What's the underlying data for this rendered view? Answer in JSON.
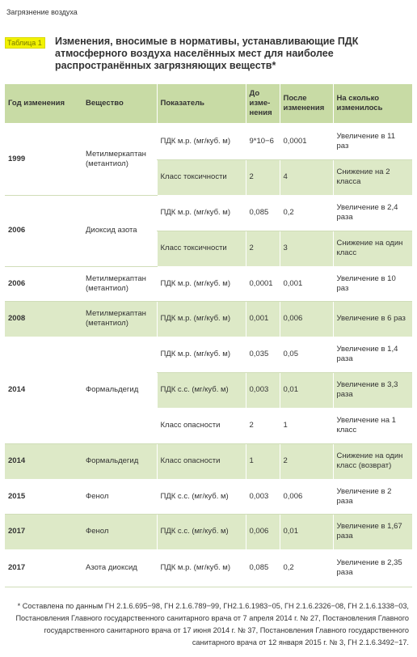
{
  "section_header": "Загрязнение воздуха",
  "caption": {
    "tag": "Таблица 1",
    "title": "Изменения, вносимые в нормативы, устанавливающие ПДК атмосферного воздуха населённых мест для наиболее распространённых загрязняющих веществ*"
  },
  "table": {
    "headers": {
      "year": "Год изменения",
      "substance": "Вещество",
      "indicator": "Показатель",
      "before": "До изме-нения",
      "after": "После изменения",
      "change": "На сколько изменилось"
    },
    "rows": [
      {
        "year": "1999",
        "substance": "Метилмеркаптан (метантиол)",
        "indicator": "ПДК м.р. (мг/куб. м)",
        "before": "9*10−6",
        "after": "0,0001",
        "change": "Увеличение в 11 раз"
      },
      {
        "indicator": "Класс токсичности",
        "before": "2",
        "after": "4",
        "change": "Снижение на 2 класса"
      },
      {
        "year": "2006",
        "substance": "Диоксид азота",
        "indicator": "ПДК м.р. (мг/куб. м)",
        "before": "0,085",
        "after": "0,2",
        "change": "Увеличение в 2,4 раза"
      },
      {
        "indicator": "Класс токсичности",
        "before": "2",
        "after": "3",
        "change": "Снижение на один класс"
      },
      {
        "year": "2006",
        "substance": "Метилмеркаптан (метантиол)",
        "indicator": "ПДК м.р. (мг/куб. м)",
        "before": "0,0001",
        "after": "0,001",
        "change": "Увеличение в 10 раз"
      },
      {
        "year": "2008",
        "substance": "Метилмеркаптан (метантиол)",
        "indicator": "ПДК м.р. (мг/куб. м)",
        "before": "0,001",
        "after": "0,006",
        "change": "Увеличение в 6 раз"
      },
      {
        "year": "2014",
        "substance": "Формальдегид",
        "indicator": "ПДК м.р. (мг/куб. м)",
        "before": "0,035",
        "after": "0,05",
        "change": "Увеличение в 1,4 раза"
      },
      {
        "indicator": "ПДК с.с. (мг/куб. м)",
        "before": "0,003",
        "after": "0,01",
        "change": "Увеличение в 3,3 раза"
      },
      {
        "indicator": "Класс опасности",
        "before": "2",
        "after": "1",
        "change": "Увеличение на 1 класс"
      },
      {
        "year": "2014",
        "substance": "Формальдегид",
        "indicator": "Класс опасности",
        "before": "1",
        "after": "2",
        "change": "Снижение на один класс (возврат)"
      },
      {
        "year": "2015",
        "substance": "Фенол",
        "indicator": "ПДК с.с. (мг/куб. м)",
        "before": "0,003",
        "after": "0,006",
        "change": "Увеличение в 2 раза"
      },
      {
        "year": "2017",
        "substance": "Фенол",
        "indicator": "ПДК с.с. (мг/куб. м)",
        "before": "0,006",
        "after": "0,01",
        "change": "Увеличение в 1,67 раза"
      },
      {
        "year": "2017",
        "substance": "Азота диоксид",
        "indicator": "ПДК м.р. (мг/куб. м)",
        "before": "0,085",
        "after": "0,2",
        "change": "Увеличение в 2,35 раза"
      }
    ]
  },
  "footnote": "* Составлена по данным ГН 2.1.6.695−98, ГН 2.1.6.789−99, ГН2.1.6.1983−05, ГН 2.1.6.2326−08, ГН 2.1.6.1338−03, Постановления Главного государственного санитарного врача от 7 апреля 2014 г. № 27, Постановления Главного государственного санитарного врача от 17 июня 2014 г. № 37, Постановления Главного государственного санитарного врача от 12 января 2015 г. № 3, ГН 2.1.6.3492−17."
}
